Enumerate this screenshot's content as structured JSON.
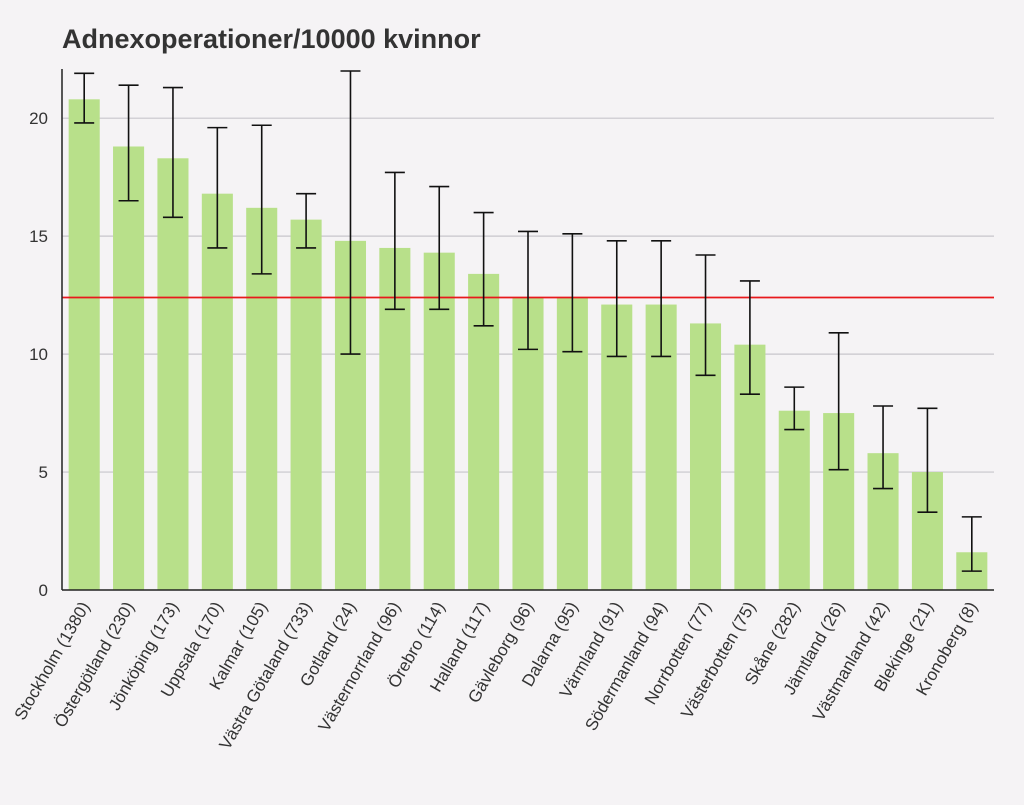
{
  "chart_data": {
    "type": "bar",
    "title": "Adnexoperationer/10000 kvinnor",
    "xlabel": "",
    "ylabel": "",
    "ylim": [
      0,
      22
    ],
    "yticks": [
      0,
      5,
      10,
      15,
      20
    ],
    "grid": true,
    "bar_color": "#b8e08a",
    "reference_line": {
      "value": 12.4,
      "color": "#e8191c"
    },
    "categories": [
      "Stockholm (1380)",
      "Östergötland (230)",
      "Jönköping (173)",
      "Uppsala (170)",
      "Kalmar (105)",
      "Västra Götaland (733)",
      "Gotland (24)",
      "Västernorrland (96)",
      "Örebro (114)",
      "Halland (117)",
      "Gävleborg (96)",
      "Dalarna (95)",
      "Värmland (91)",
      "Södermanland (94)",
      "Norrbotten (77)",
      "Västerbotten (75)",
      "Skåne (282)",
      "Jämtland (26)",
      "Västmanland (42)",
      "Blekinge (21)",
      "Kronoberg (8)"
    ],
    "values": [
      20.8,
      18.8,
      18.3,
      16.8,
      16.2,
      15.7,
      14.8,
      14.5,
      14.3,
      13.4,
      12.4,
      12.4,
      12.1,
      12.1,
      11.3,
      10.4,
      7.6,
      7.5,
      5.8,
      5.0,
      1.6
    ],
    "error_low": [
      19.8,
      16.5,
      15.8,
      14.5,
      13.4,
      14.5,
      10.0,
      11.9,
      11.9,
      11.2,
      10.2,
      10.1,
      9.9,
      9.9,
      9.1,
      8.3,
      6.8,
      5.1,
      4.3,
      3.3,
      0.8
    ],
    "error_high": [
      21.9,
      21.4,
      21.3,
      19.6,
      19.7,
      16.8,
      22.0,
      17.7,
      17.1,
      16.0,
      15.2,
      15.1,
      14.8,
      14.8,
      14.2,
      13.1,
      8.6,
      10.9,
      7.8,
      7.7,
      3.1
    ]
  }
}
